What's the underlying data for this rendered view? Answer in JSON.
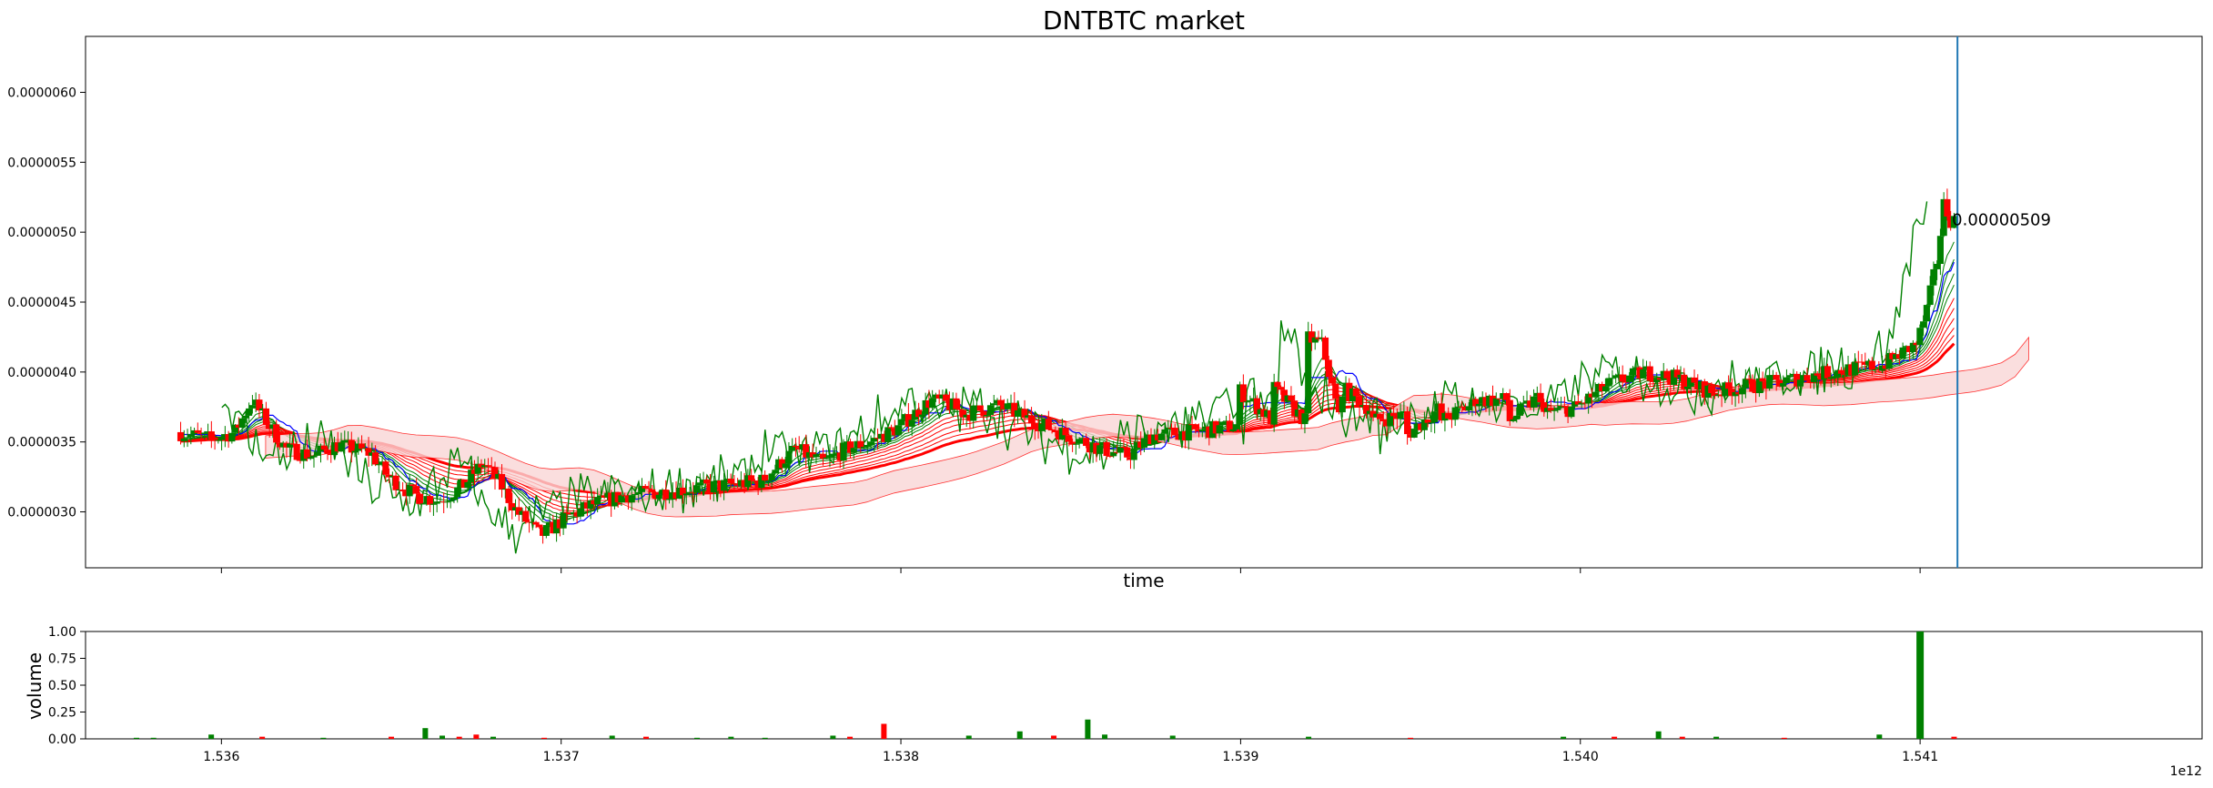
{
  "chart_data": [
    {
      "type": "candlestick",
      "title": "DNTBTC market",
      "xlabel": "time",
      "ylabel": "",
      "x_offset_text": "1e12",
      "x_range": [
        1.5356,
        1.54183
      ],
      "y_range": [
        2.6e-06,
        6.4e-06
      ],
      "x_ticks": [
        {
          "value": 1.536,
          "label": "1.536"
        },
        {
          "value": 1.537,
          "label": "1.537"
        },
        {
          "value": 1.538,
          "label": "1.538"
        },
        {
          "value": 1.539,
          "label": "1.539"
        },
        {
          "value": 1.54,
          "label": "1.540"
        },
        {
          "value": 1.541,
          "label": "1.541"
        }
      ],
      "y_ticks": [
        {
          "value": 3e-06,
          "label": "0.0000030"
        },
        {
          "value": 3.5e-06,
          "label": "0.0000035"
        },
        {
          "value": 4e-06,
          "label": "0.0000040"
        },
        {
          "value": 4.5e-06,
          "label": "0.0000045"
        },
        {
          "value": 5e-06,
          "label": "0.0000050"
        },
        {
          "value": 5.5e-06,
          "label": "0.0000055"
        },
        {
          "value": 6e-06,
          "label": "0.0000060"
        }
      ],
      "last_price_label": "0.00000509",
      "last_price": 5.09e-06,
      "current_time": 1.54111,
      "colors": {
        "up": "#008000",
        "down": "#ff0000",
        "tenkan": "#0000ff",
        "chikou": "#008000",
        "ema": "#ff0000",
        "cloud_bull": "#c8e6c8",
        "cloud_bear": "#f9d6d6",
        "vline": "#1f77b4"
      },
      "candles_description_points": [
        [
          1.53588,
          3.57e-06
        ],
        [
          1.53598,
          3.52e-06
        ],
        [
          1.53605,
          3.57e-06
        ],
        [
          1.5361,
          3.8e-06
        ],
        [
          1.53615,
          3.62e-06
        ],
        [
          1.5362,
          3.45e-06
        ],
        [
          1.53628,
          3.4e-06
        ],
        [
          1.53635,
          3.48e-06
        ],
        [
          1.53645,
          3.42e-06
        ],
        [
          1.5365,
          3.25e-06
        ],
        [
          1.53658,
          3.12e-06
        ],
        [
          1.53665,
          3.08e-06
        ],
        [
          1.53672,
          3.18e-06
        ],
        [
          1.53678,
          3.35e-06
        ],
        [
          1.53683,
          3.2e-06
        ],
        [
          1.53688,
          3e-06
        ],
        [
          1.53695,
          2.83e-06
        ],
        [
          1.53702,
          2.95e-06
        ],
        [
          1.5371,
          3.05e-06
        ],
        [
          1.5372,
          3.12e-06
        ],
        [
          1.5373,
          3.14e-06
        ],
        [
          1.53745,
          3.18e-06
        ],
        [
          1.5376,
          3.22e-06
        ],
        [
          1.5377,
          3.45e-06
        ],
        [
          1.53778,
          3.35e-06
        ],
        [
          1.53785,
          3.45e-06
        ],
        [
          1.53792,
          3.5e-06
        ],
        [
          1.538,
          3.6e-06
        ],
        [
          1.53805,
          3.7e-06
        ],
        [
          1.5381,
          3.8e-06
        ],
        [
          1.53815,
          3.77e-06
        ],
        [
          1.5382,
          3.7e-06
        ],
        [
          1.5383,
          3.76e-06
        ],
        [
          1.5384,
          3.65e-06
        ],
        [
          1.5385,
          3.55e-06
        ],
        [
          1.5386,
          3.45e-06
        ],
        [
          1.53868,
          3.4e-06
        ],
        [
          1.53875,
          3.55e-06
        ],
        [
          1.5389,
          3.58e-06
        ],
        [
          1.539,
          3.62e-06
        ],
        [
          1.5391,
          3.66e-06
        ],
        [
          1.5392,
          3.65e-06
        ],
        [
          1.5393,
          3.68e-06
        ],
        [
          1.5394,
          3.72e-06
        ],
        [
          1.5395,
          3.7e-06
        ],
        [
          1.5396,
          3.75e-06
        ],
        [
          1.5397,
          3.78e-06
        ],
        [
          1.5398,
          3.8e-06
        ],
        [
          1.5399,
          3.85e-06
        ],
        [
          1.539,
          3.88e-06
        ],
        [
          1.5391,
          3.9e-06
        ],
        [
          1.5392,
          4.25e-06
        ],
        [
          1.53925,
          4.2e-06
        ],
        [
          1.5393,
          3.9e-06
        ],
        [
          1.5394,
          3.65e-06
        ],
        [
          1.5395,
          3.55e-06
        ],
        [
          1.5396,
          3.65e-06
        ],
        [
          1.5397,
          3.8e-06
        ],
        [
          1.5398,
          3.65e-06
        ],
        [
          1.5399,
          3.7e-06
        ],
        [
          1.54,
          3.75e-06
        ],
        [
          1.5401,
          3.92e-06
        ],
        [
          1.5402,
          4e-06
        ],
        [
          1.5403,
          3.95e-06
        ],
        [
          1.5404,
          3.85e-06
        ],
        [
          1.5405,
          3.9e-06
        ],
        [
          1.5406,
          3.93e-06
        ],
        [
          1.5407,
          3.98e-06
        ],
        [
          1.5408,
          4.02e-06
        ],
        [
          1.5409,
          4.05e-06
        ],
        [
          1.541,
          4.2e-06
        ],
        [
          1.54103,
          4.45e-06
        ],
        [
          1.54106,
          4.8e-06
        ],
        [
          1.54108,
          5.2e-06
        ],
        [
          1.5411,
          5.09e-06
        ]
      ]
    },
    {
      "type": "bar",
      "ylabel": "volume",
      "y_range": [
        0,
        1.0
      ],
      "x_range": [
        1.5356,
        1.54183
      ],
      "y_ticks": [
        {
          "value": 0.0,
          "label": "0.00"
        },
        {
          "value": 0.25,
          "label": "0.25"
        },
        {
          "value": 0.5,
          "label": "0.50"
        },
        {
          "value": 0.75,
          "label": "0.75"
        },
        {
          "value": 1.0,
          "label": "1.00"
        }
      ],
      "x_ticks": [
        {
          "value": 1.536,
          "label": "1.536"
        },
        {
          "value": 1.537,
          "label": "1.537"
        },
        {
          "value": 1.538,
          "label": "1.538"
        },
        {
          "value": 1.539,
          "label": "1.539"
        },
        {
          "value": 1.54,
          "label": "1.540"
        },
        {
          "value": 1.541,
          "label": "1.541"
        }
      ],
      "x_offset_text": "1e12",
      "bars": [
        {
          "x": 1.53575,
          "v": 0.01,
          "up": true
        },
        {
          "x": 1.5358,
          "v": 0.01,
          "up": true
        },
        {
          "x": 1.53597,
          "v": 0.04,
          "up": true
        },
        {
          "x": 1.53612,
          "v": 0.02,
          "up": false
        },
        {
          "x": 1.5363,
          "v": 0.01,
          "up": true
        },
        {
          "x": 1.5365,
          "v": 0.02,
          "up": false
        },
        {
          "x": 1.5366,
          "v": 0.1,
          "up": true
        },
        {
          "x": 1.53665,
          "v": 0.03,
          "up": true
        },
        {
          "x": 1.5367,
          "v": 0.02,
          "up": false
        },
        {
          "x": 1.53675,
          "v": 0.04,
          "up": false
        },
        {
          "x": 1.5368,
          "v": 0.02,
          "up": true
        },
        {
          "x": 1.53695,
          "v": 0.01,
          "up": false
        },
        {
          "x": 1.53715,
          "v": 0.03,
          "up": true
        },
        {
          "x": 1.53725,
          "v": 0.02,
          "up": false
        },
        {
          "x": 1.5374,
          "v": 0.01,
          "up": true
        },
        {
          "x": 1.5375,
          "v": 0.02,
          "up": true
        },
        {
          "x": 1.5376,
          "v": 0.01,
          "up": true
        },
        {
          "x": 1.5378,
          "v": 0.03,
          "up": true
        },
        {
          "x": 1.53785,
          "v": 0.02,
          "up": false
        },
        {
          "x": 1.53795,
          "v": 0.14,
          "up": false
        },
        {
          "x": 1.5382,
          "v": 0.03,
          "up": true
        },
        {
          "x": 1.53835,
          "v": 0.07,
          "up": true
        },
        {
          "x": 1.53845,
          "v": 0.03,
          "up": false
        },
        {
          "x": 1.53855,
          "v": 0.18,
          "up": true
        },
        {
          "x": 1.5386,
          "v": 0.04,
          "up": true
        },
        {
          "x": 1.5388,
          "v": 0.03,
          "up": true
        },
        {
          "x": 1.5392,
          "v": 0.02,
          "up": true
        },
        {
          "x": 1.5395,
          "v": 0.01,
          "up": false
        },
        {
          "x": 1.53995,
          "v": 0.02,
          "up": true
        },
        {
          "x": 1.5401,
          "v": 0.02,
          "up": false
        },
        {
          "x": 1.54023,
          "v": 0.07,
          "up": true
        },
        {
          "x": 1.5403,
          "v": 0.02,
          "up": false
        },
        {
          "x": 1.5404,
          "v": 0.02,
          "up": true
        },
        {
          "x": 1.5406,
          "v": 0.01,
          "up": false
        },
        {
          "x": 1.54088,
          "v": 0.04,
          "up": true
        },
        {
          "x": 1.5411,
          "v": 0.02,
          "up": false
        }
      ]
    }
  ]
}
